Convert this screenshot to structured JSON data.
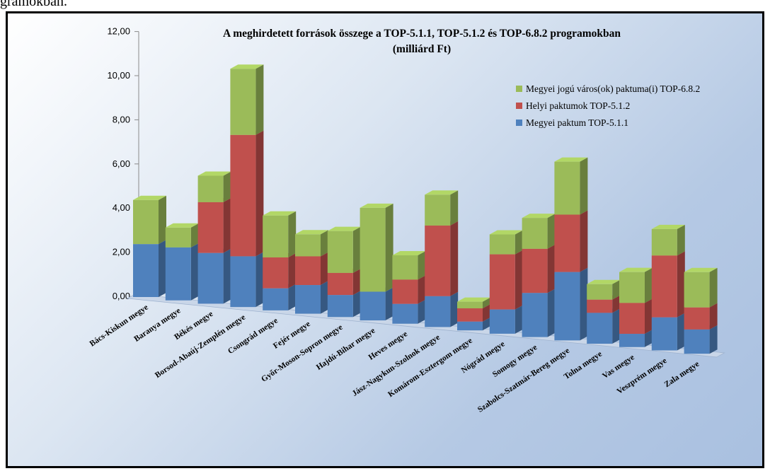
{
  "page": {
    "top_caption": "gramokban."
  },
  "chart_data": {
    "type": "bar",
    "stacked": true,
    "three_d": true,
    "title": [
      "A meghirdetett források összege a TOP-5.1.1, TOP-5.1.2 és TOP-6.8.2 programokban",
      "(milliárd Ft)"
    ],
    "xlabel": "",
    "ylabel": "",
    "ylim": [
      0,
      12
    ],
    "yticks": [
      "0,00",
      "2,00",
      "4,00",
      "6,00",
      "8,00",
      "10,00",
      "12,00"
    ],
    "grid": false,
    "legend_position": "top-right",
    "categories": [
      "Bács-Kiskun megye",
      "Baranya megye",
      "Békés megye",
      "Borsod-Abaúj-Zemplén megye",
      "Csongrád megye",
      "Fejér megye",
      "Győr-Moson-Sopron megye",
      "Hajdú-Bihar megye",
      "Heves megye",
      "Jász-Nagykun-Szolnok megye",
      "Komárom-Esztergom megye",
      "Nógrád megye",
      "Somogy megye",
      "Szabolcs-Szatmár-Bereg megye",
      "Tolna megye",
      "Vas megye",
      "Veszprém megye",
      "Zala megye"
    ],
    "series": [
      {
        "name": "Megyei paktum TOP-5.1.1",
        "color": "#4f81bd",
        "values": [
          2.4,
          2.4,
          2.3,
          2.3,
          1.0,
          1.3,
          1.0,
          1.3,
          0.9,
          1.4,
          0.4,
          1.1,
          2.0,
          3.1,
          1.4,
          0.6,
          1.5,
          1.1
        ]
      },
      {
        "name": "Helyi paktumok TOP-5.1.2",
        "color": "#c0504d",
        "values": [
          0.0,
          0.0,
          2.3,
          5.5,
          1.4,
          1.3,
          1.0,
          0.0,
          1.1,
          3.2,
          0.6,
          2.5,
          2.0,
          2.6,
          0.6,
          1.4,
          2.8,
          1.0
        ]
      },
      {
        "name": "Megyei jogú város(ok) paktuma(i) TOP-6.8.2",
        "color": "#9bbb59",
        "values": [
          2.0,
          0.9,
          1.2,
          3.0,
          1.9,
          1.0,
          1.9,
          3.8,
          1.1,
          1.4,
          0.3,
          0.9,
          1.4,
          2.4,
          0.7,
          1.4,
          1.2,
          1.6
        ]
      }
    ],
    "legend_order": [
      "Megyei jogú város(ok) paktuma(i) TOP-6.8.2",
      "Helyi paktumok TOP-5.1.2",
      "Megyei paktum TOP-5.1.1"
    ]
  }
}
